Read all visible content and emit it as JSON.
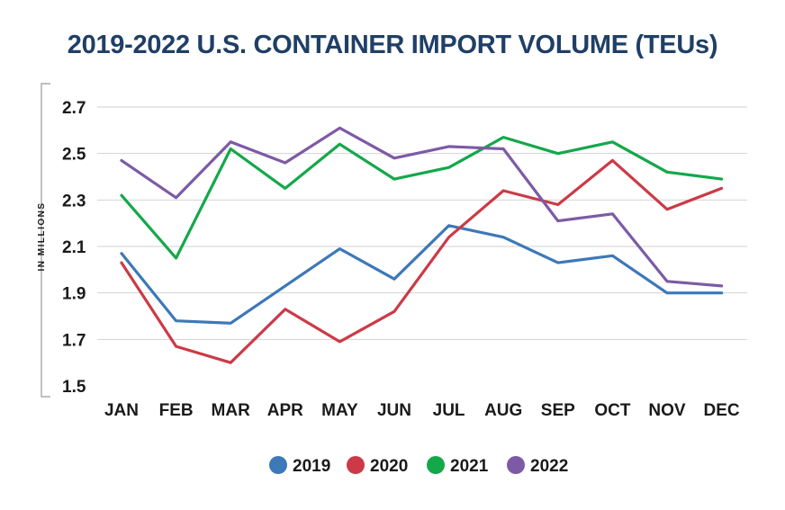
{
  "chart_data": {
    "type": "line",
    "title": "2019-2022 U.S. CONTAINER IMPORT VOLUME (TEUs)",
    "xlabel": "",
    "ylabel": "IN MILLIONS",
    "categories": [
      "JAN",
      "FEB",
      "MAR",
      "APR",
      "MAY",
      "JUN",
      "JUL",
      "AUG",
      "SEP",
      "OCT",
      "NOV",
      "DEC"
    ],
    "ylim": [
      1.5,
      2.7
    ],
    "yticks": [
      1.5,
      1.7,
      1.9,
      2.1,
      2.3,
      2.5,
      2.7
    ],
    "ytick_labels": [
      "1.5",
      "1.7",
      "1.9",
      "2.1",
      "2.3",
      "2.5",
      "2.7"
    ],
    "grid": true,
    "legend_position": "bottom",
    "series": [
      {
        "name": "2019",
        "color": "#3d78b8",
        "values": [
          2.07,
          1.78,
          1.77,
          1.93,
          2.09,
          1.96,
          2.19,
          2.14,
          2.03,
          2.06,
          1.9,
          1.9
        ]
      },
      {
        "name": "2020",
        "color": "#cc3a47",
        "values": [
          2.03,
          1.67,
          1.6,
          1.83,
          1.69,
          1.82,
          2.14,
          2.34,
          2.28,
          2.47,
          2.26,
          2.35
        ]
      },
      {
        "name": "2021",
        "color": "#14a84a",
        "values": [
          2.32,
          2.05,
          2.52,
          2.35,
          2.54,
          2.39,
          2.44,
          2.57,
          2.5,
          2.55,
          2.42,
          2.39
        ]
      },
      {
        "name": "2022",
        "color": "#7d5aa6",
        "values": [
          2.47,
          2.31,
          2.55,
          2.46,
          2.61,
          2.48,
          2.53,
          2.52,
          2.21,
          2.24,
          1.95,
          1.93
        ]
      }
    ]
  }
}
